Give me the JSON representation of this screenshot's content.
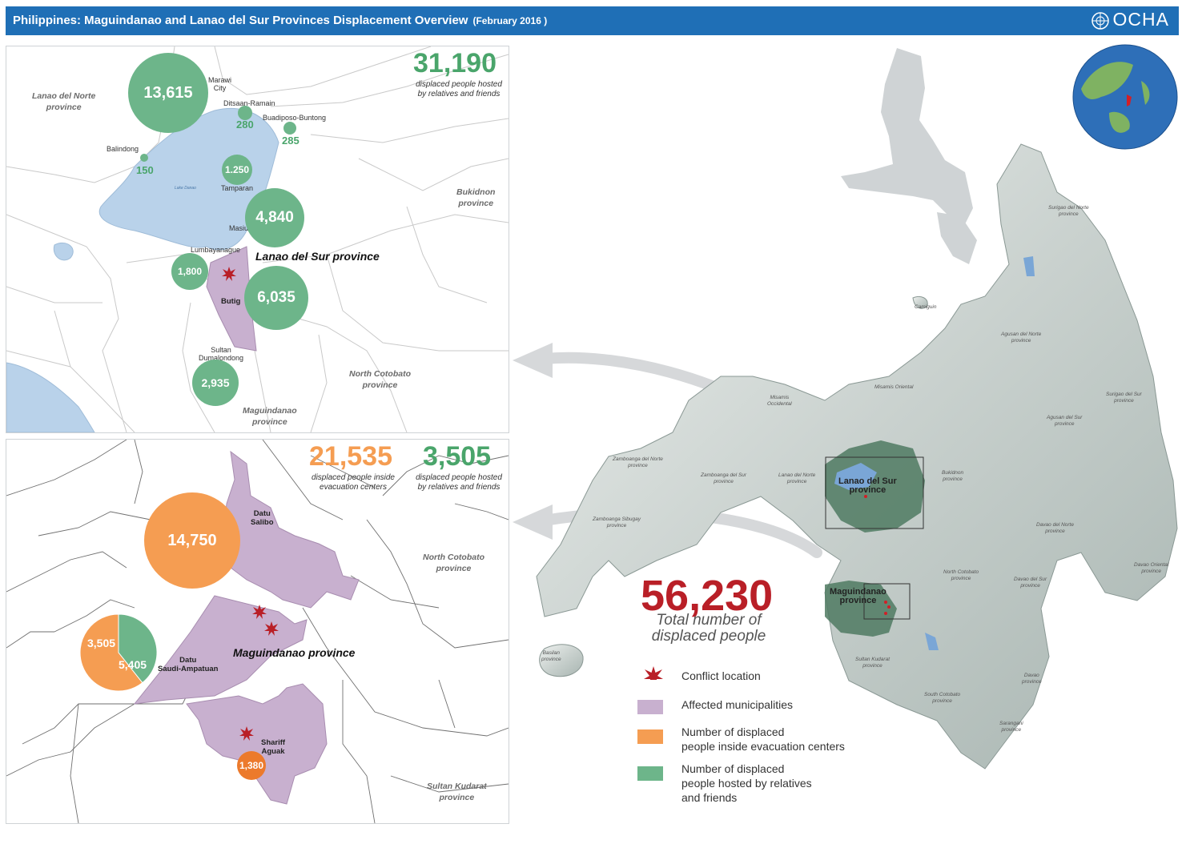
{
  "header": {
    "title": "Philippines: Maguindanao and Lanao del Sur Provinces Displacement Overview",
    "date": "(February 2016 )",
    "logo": "OCHA"
  },
  "colors": {
    "header": "#1f6fb6",
    "green": "#6db58a",
    "orange": "#f59d52",
    "red": "#b91f27",
    "affected": "#c8b0cf",
    "lake": "#b9d2ea"
  },
  "top_panel": {
    "total_value": "31,190",
    "total_caption_1": "displaced people  hosted",
    "total_caption_2": "by relatives and friends",
    "provinces": {
      "lanao_norte_1": "Lanao del Norte",
      "lanao_norte_2": "province",
      "bukidnon_1": "Bukidnon",
      "bukidnon_2": "province",
      "north_cotobato_1": "North Cotobato",
      "north_cotobato_2": "province",
      "maguindanao_1": "Maguindanao",
      "maguindanao_2": "province"
    },
    "province_main": "Lanao del Sur province",
    "lake": "Lake Danao",
    "places": {
      "marawi": "Marawi",
      "marawi_2": "City",
      "ditsaan": "Ditsaan-Ramain",
      "buadiposo": "Buadiposo-Buntong",
      "balindong": "Balindong",
      "tamparan": "Tamparan",
      "masiu": "Masiu",
      "lumbayanague": "Lumbayanague",
      "butig": "Butig",
      "sultan_1": "Sultan",
      "sultan_2": "Dumalondong"
    },
    "values": {
      "marawi": "13,615",
      "ditsaan": "280",
      "buadiposo": "285",
      "balindong": "150",
      "tamparan": "1.250",
      "masiu": "4,840",
      "lumbayanague": "1,800",
      "butig": "6,035",
      "sultan": "2,935"
    }
  },
  "bottom_panel": {
    "evac_value": "21,535",
    "evac_caption_1": "displaced people inside",
    "evac_caption_2": "evacuation centers",
    "hosted_value": "3,505",
    "hosted_caption_1": "displaced people  hosted",
    "hosted_caption_2": "by relatives and friends",
    "provinces": {
      "north_cotobato_1": "North Cotobato",
      "north_cotobato_2": "province",
      "sultan_kudarat_1": "Sultan Kudarat",
      "sultan_kudarat_2": "province"
    },
    "province_main": "Maguindanao province",
    "places": {
      "datu_salibo_1": "Datu",
      "datu_salibo_2": "Salibo",
      "datu_saudi_1": "Datu",
      "datu_saudi_2": "Saudi-Ampatuan",
      "shariff_1": "Shariff",
      "shariff_2": "Aguak"
    },
    "values": {
      "datu_salibo": "14,750",
      "pie_hosted": "3,505",
      "pie_evac": "5,405",
      "shariff": "1,380"
    },
    "pie_chart": {
      "hosted": 3505,
      "evac": 5405
    }
  },
  "overview": {
    "total": "56,230",
    "total_caption_1": "Total number of",
    "total_caption_2": "displaced people",
    "box_lanao_1": "Lanao del Sur",
    "box_lanao_2": "province",
    "box_magu_1": "Maguindanao",
    "box_magu_2": "province",
    "labels": {
      "misamis_occ_1": "Misamis",
      "misamis_occ_2": "Occidental",
      "misamis_or": "Misamis Oriental",
      "camiguin": "Camiguin",
      "agusan_norte_1": "Agusan del Norte",
      "agusan_norte_2": "province",
      "agusan_sur_1": "Agusan del Sur",
      "agusan_sur_2": "province",
      "surigao_norte_1": "Surigao del Norte",
      "surigao_norte_2": "province",
      "surigao_sur_1": "Surigao del Sur",
      "surigao_sur_2": "province",
      "zambo_norte_1": "Zamboanga del Norte",
      "zambo_norte_2": "province",
      "zambo_sur_1": "Zamboanga del Sur",
      "zambo_sur_2": "province",
      "zambo_sib_1": "Zamboanga Sibugay",
      "zambo_sib_2": "province",
      "lanao_norte_1": "Lanao del Norte",
      "lanao_norte_2": "province",
      "bukidnon_1": "Bukidnon",
      "bukidnon_2": "province",
      "davao_norte_1": "Davao del Norte",
      "davao_norte_2": "province",
      "davao_sur_1": "Davao del Sur",
      "davao_sur_2": "province",
      "davao_or_1": "Davao Oriental",
      "davao_or_2": "province",
      "north_cot_1": "North Cotobato",
      "north_cot_2": "province",
      "sultan_kud_1": "Sultan Kudarat",
      "sultan_kud_2": "province",
      "south_cot_1": "South Cotobato",
      "south_cot_2": "province",
      "sarangani_1": "Sarangani",
      "sarangani_2": "province",
      "davao_1": "Davao",
      "davao_2": "province",
      "basilan_1": "Basilan",
      "basilan_2": "province"
    }
  },
  "legend": {
    "conflict": "Conflict location",
    "affected": "Affected municipalities",
    "evac_1": "Number of displaced",
    "evac_2": "people inside evacuation centers",
    "hosted_1": "Number of displaced",
    "hosted_2": "people hosted by relatives",
    "hosted_3": "and friends"
  }
}
